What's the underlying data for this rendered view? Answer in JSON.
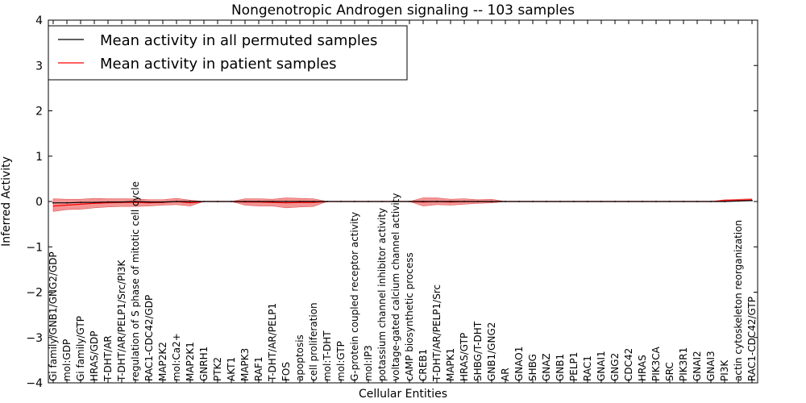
{
  "chart_data": {
    "type": "line",
    "title": "Nongenotropic Androgen signaling -- 103 samples",
    "xlabel": "Cellular Entities",
    "ylabel": "Inferred Activity",
    "ylim": [
      -4,
      4
    ],
    "yticks": [
      "−4",
      "−3",
      "−2",
      "−1",
      "0",
      "1",
      "2",
      "3",
      "4"
    ],
    "yticks_values": [
      -4,
      -3,
      -2,
      -1,
      0,
      1,
      2,
      3,
      4
    ],
    "grid": false,
    "legend_position": "top-left",
    "categories": [
      "Gi family/GNB1/GNG2/GDP",
      "mol:GDP",
      "Gi family/GTP",
      "HRAS/GDP",
      "T-DHT/AR",
      "T-DHT/AR/PELP1/Src/PI3K",
      "regulation of S phase of mitotic cell cycle",
      "RAC1-CDC42/GDP",
      "MAP2K2",
      "mol:Ca2+",
      "MAP2K1",
      "GNRH1",
      "PTK2",
      "AKT1",
      "MAPK3",
      "RAF1",
      "T-DHT/AR/PELP1",
      "FOS",
      "apoptosis",
      "cell proliferation",
      "mol:T-DHT",
      "mol:GTP",
      "G-protein coupled receptor activity",
      "mol:IP3",
      "potassium channel inhibitor activity",
      "voltage-gated calcium channel activity",
      "cAMP biosynthetic process",
      "CREB1",
      "T-DHT/AR/PELP1/Src",
      "MAPK1",
      "HRAS/GTP",
      "SHBG/T-DHT",
      "GNB1/GNG2",
      "AR",
      "GNAO1",
      "SHBG",
      "GNAZ",
      "GNB1",
      "PELP1",
      "RAC1",
      "GNAI1",
      "GNG2",
      "CDC42",
      "HRAS",
      "PIK3CA",
      "SRC",
      "PIK3R1",
      "GNAI2",
      "GNAI3",
      "PI3K",
      "actin cytoskeleton reorganization",
      "RAC1-CDC42/GTP"
    ],
    "series": [
      {
        "name": "Mean activity in all permuted samples",
        "color": "#000000",
        "values": [
          -0.03,
          -0.03,
          -0.02,
          -0.02,
          -0.01,
          -0.01,
          0.0,
          -0.01,
          -0.01,
          0.0,
          0.0,
          0.0,
          0.0,
          0.0,
          0.0,
          0.0,
          0.0,
          0.0,
          0.0,
          0.0,
          0.0,
          0.0,
          0.0,
          0.0,
          0.0,
          0.0,
          0.0,
          0.0,
          0.0,
          0.0,
          0.0,
          0.0,
          0.0,
          0.0,
          0.0,
          0.0,
          0.0,
          0.0,
          0.0,
          0.0,
          0.0,
          0.0,
          0.0,
          0.0,
          0.0,
          0.0,
          0.0,
          0.0,
          0.0,
          0.0,
          0.01,
          0.02
        ]
      },
      {
        "name": "Mean activity in patient samples",
        "color": "#ff0000",
        "band_color": "#ee6666",
        "values": [
          -0.1,
          -0.08,
          -0.06,
          -0.04,
          -0.03,
          -0.02,
          -0.02,
          -0.03,
          -0.02,
          0.0,
          -0.03,
          0.0,
          0.0,
          0.0,
          -0.01,
          -0.01,
          -0.02,
          -0.03,
          -0.02,
          -0.02,
          0.0,
          0.0,
          0.0,
          0.0,
          0.0,
          0.0,
          0.0,
          -0.01,
          0.0,
          -0.01,
          0.0,
          0.0,
          0.0,
          0.0,
          0.0,
          0.0,
          0.0,
          0.0,
          0.0,
          0.0,
          0.0,
          0.0,
          0.0,
          0.0,
          0.0,
          0.0,
          0.0,
          0.0,
          0.0,
          0.02,
          0.03,
          0.04
        ],
        "upper": [
          0.06,
          0.05,
          0.05,
          0.07,
          0.06,
          0.06,
          0.06,
          0.04,
          0.04,
          0.07,
          0.03,
          0.0,
          0.0,
          0.0,
          0.06,
          0.06,
          0.05,
          0.08,
          0.07,
          0.06,
          0.0,
          0.0,
          0.0,
          0.0,
          0.0,
          0.0,
          0.0,
          0.08,
          0.08,
          0.05,
          0.06,
          0.04,
          0.05,
          0.0,
          0.0,
          0.0,
          0.0,
          0.0,
          0.0,
          0.0,
          0.0,
          0.0,
          0.0,
          0.0,
          0.0,
          0.0,
          0.0,
          0.0,
          0.0,
          0.04,
          0.05,
          0.06
        ],
        "lower": [
          -0.22,
          -0.18,
          -0.17,
          -0.14,
          -0.12,
          -0.11,
          -0.11,
          -0.1,
          -0.08,
          -0.07,
          -0.1,
          0.0,
          0.0,
          0.0,
          -0.08,
          -0.1,
          -0.1,
          -0.14,
          -0.12,
          -0.11,
          0.0,
          0.0,
          0.0,
          0.0,
          0.0,
          0.0,
          0.0,
          -0.1,
          -0.07,
          -0.08,
          -0.06,
          -0.04,
          -0.03,
          0.0,
          0.0,
          0.0,
          0.0,
          0.0,
          0.0,
          0.0,
          0.0,
          0.0,
          0.0,
          0.0,
          0.0,
          0.0,
          0.0,
          0.0,
          0.0,
          0.0,
          0.01,
          0.02
        ]
      }
    ]
  }
}
